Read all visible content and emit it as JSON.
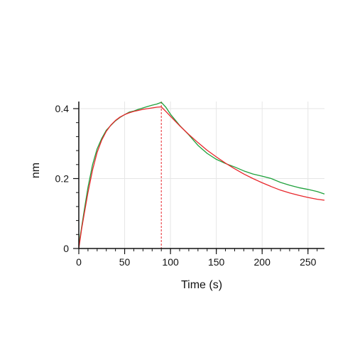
{
  "chart_data": {
    "type": "line",
    "xlabel": "Time (s)",
    "ylabel": "nm",
    "xlim": [
      0,
      268
    ],
    "ylim": [
      0,
      0.4
    ],
    "grid": true,
    "x_ticks": [
      0,
      50,
      100,
      150,
      200,
      250
    ],
    "x_tick_labels": [
      "0",
      "50",
      "100",
      "150",
      "200",
      "250"
    ],
    "x_minor_step": 10,
    "y_ticks": [
      0,
      0.2,
      0.4
    ],
    "y_tick_labels": [
      "0",
      "0.2",
      "0.4"
    ],
    "y_minor_step": 0.04,
    "vlines": [
      {
        "x": 0,
        "color": "#e8262b",
        "style": "dashed"
      },
      {
        "x": 90,
        "color": "#e8262b",
        "style": "dashed"
      }
    ],
    "series": [
      {
        "color": "#1fa13c",
        "x": [
          0,
          3,
          6,
          10,
          15,
          20,
          25,
          30,
          35,
          40,
          45,
          50,
          55,
          60,
          65,
          70,
          75,
          80,
          85,
          90,
          95,
          100,
          110,
          120,
          130,
          140,
          150,
          160,
          170,
          180,
          190,
          200,
          210,
          220,
          230,
          240,
          250,
          260,
          268
        ],
        "y": [
          0.01,
          0.06,
          0.11,
          0.175,
          0.24,
          0.285,
          0.315,
          0.338,
          0.352,
          0.365,
          0.375,
          0.383,
          0.39,
          0.393,
          0.398,
          0.402,
          0.406,
          0.41,
          0.413,
          0.418,
          0.404,
          0.384,
          0.352,
          0.325,
          0.295,
          0.272,
          0.255,
          0.243,
          0.233,
          0.222,
          0.213,
          0.207,
          0.2,
          0.189,
          0.181,
          0.174,
          0.169,
          0.163,
          0.156
        ]
      },
      {
        "color": "#e8262b",
        "x": [
          0,
          3,
          6,
          10,
          15,
          20,
          25,
          30,
          35,
          40,
          45,
          50,
          55,
          60,
          65,
          70,
          75,
          80,
          85,
          90,
          95,
          100,
          110,
          120,
          130,
          140,
          150,
          160,
          170,
          180,
          190,
          200,
          210,
          220,
          230,
          240,
          250,
          260,
          268
        ],
        "y": [
          0.0,
          0.055,
          0.1,
          0.16,
          0.225,
          0.275,
          0.31,
          0.335,
          0.353,
          0.366,
          0.376,
          0.383,
          0.388,
          0.392,
          0.395,
          0.398,
          0.4,
          0.402,
          0.404,
          0.405,
          0.392,
          0.378,
          0.351,
          0.326,
          0.303,
          0.281,
          0.262,
          0.244,
          0.228,
          0.213,
          0.2,
          0.188,
          0.177,
          0.167,
          0.159,
          0.152,
          0.146,
          0.141,
          0.138
        ]
      }
    ]
  }
}
